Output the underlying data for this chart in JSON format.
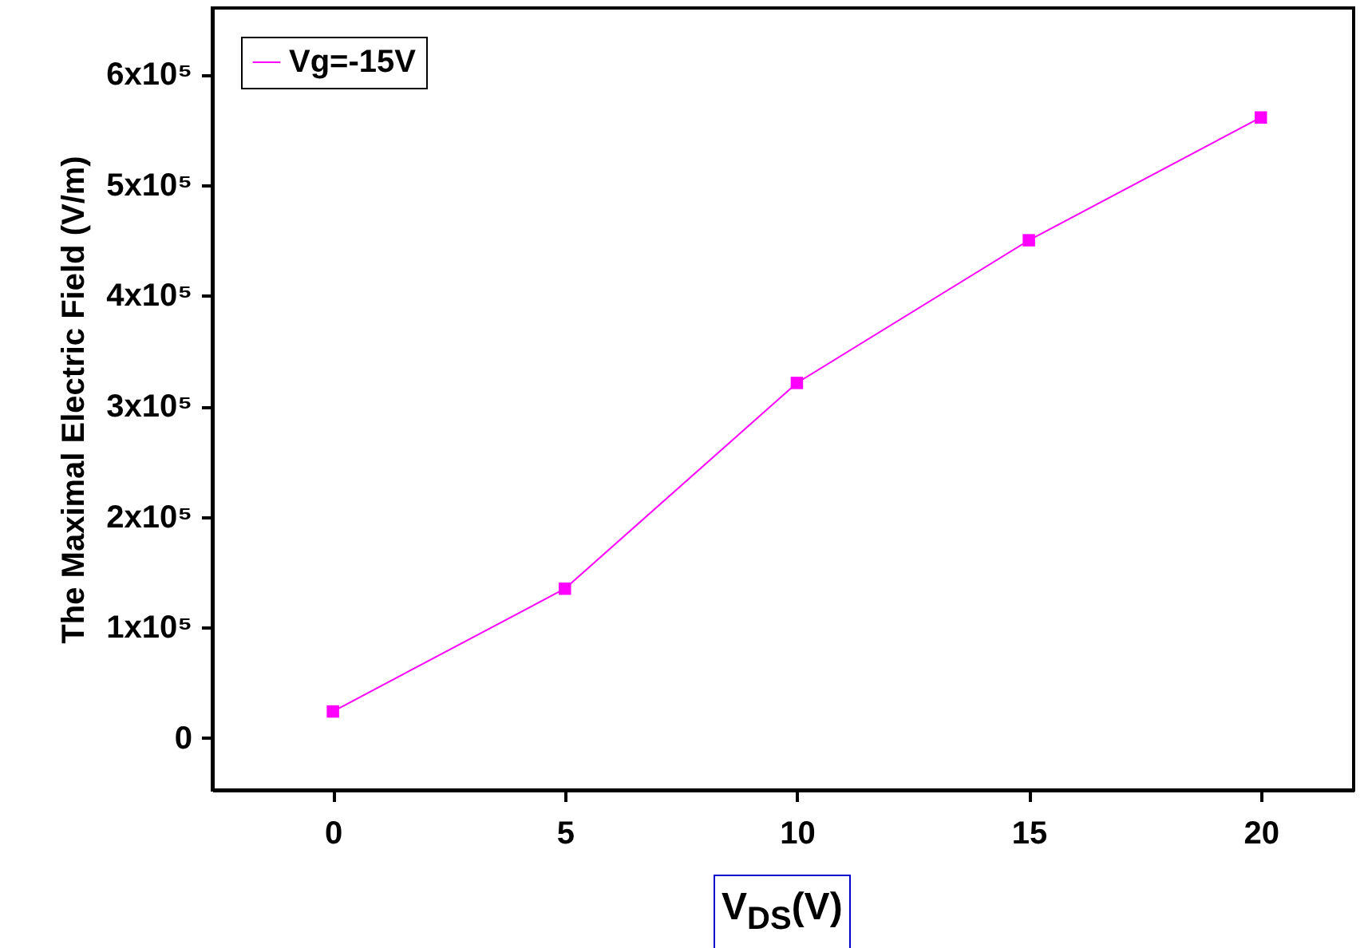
{
  "chart_data": {
    "type": "line",
    "xlabel": "V$_{DS}$(V)",
    "ylabel": "The Maximal Electric Field (V/m)",
    "x": [
      0,
      5,
      10,
      15,
      20
    ],
    "series": [
      {
        "name": "Vg=-15V",
        "color": "#ff00ff",
        "values": [
          24000,
          135000,
          321000,
          450000,
          561000
        ]
      }
    ],
    "xlim": [
      -2.6,
      22
    ],
    "xticks": [
      0,
      5,
      10,
      15,
      20
    ],
    "ylim": [
      -47000,
      660000
    ],
    "yticks": [
      {
        "value": 0,
        "label": "0"
      },
      {
        "value": 100000,
        "label": "1x10⁵"
      },
      {
        "value": 200000,
        "label": "2x10⁵"
      },
      {
        "value": 300000,
        "label": "3x10⁵"
      },
      {
        "value": 400000,
        "label": "4x10⁵"
      },
      {
        "value": 500000,
        "label": "5x10⁵"
      },
      {
        "value": 600000,
        "label": "6x10⁵"
      }
    ],
    "marker": "square",
    "line_style": "solid",
    "grid": false,
    "legend": "top left"
  }
}
